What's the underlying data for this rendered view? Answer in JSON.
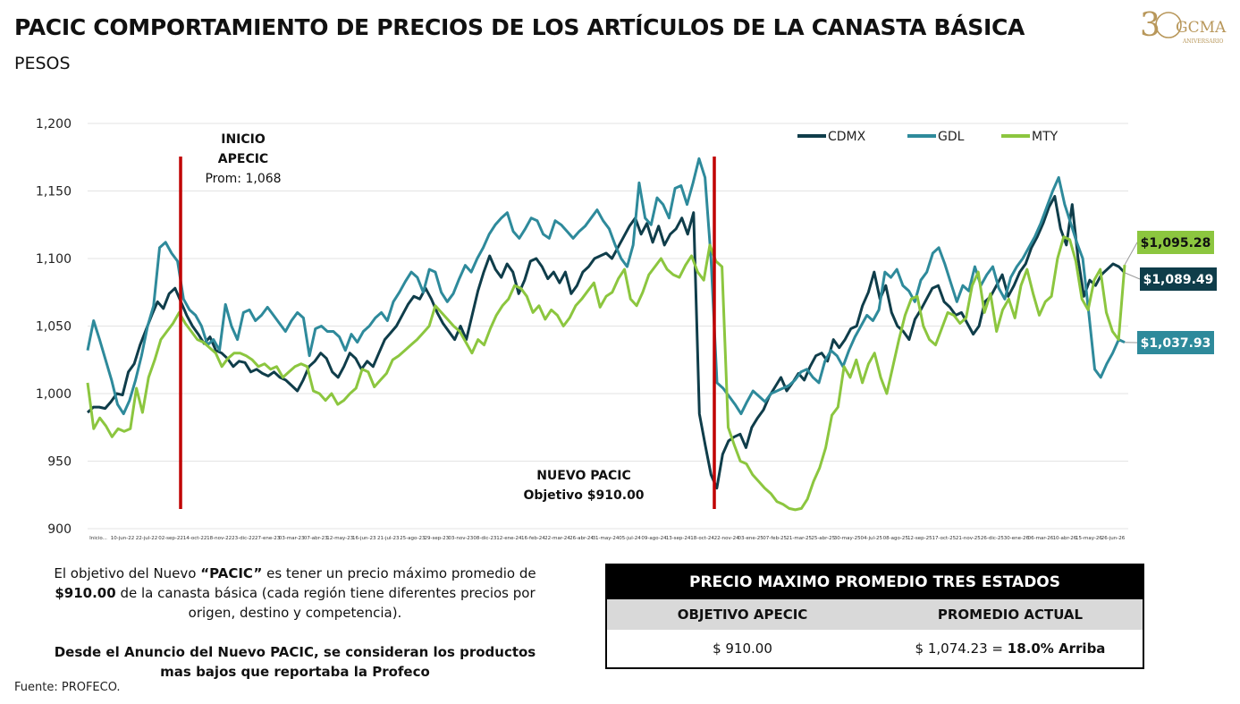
{
  "page": {
    "title": "PACIC COMPORTAMIENTO DE PRECIOS DE LOS ARTÍCULOS DE LA CANASTA BÁSICA",
    "subtitle": "PESOS",
    "logo_text": "30 GCMA ANIVERSARIO",
    "logo_color": "#b8975a",
    "source": "Fuente: PROFECO."
  },
  "description": {
    "p1_a": "El objetivo del Nuevo ",
    "p1_b": "“PACIC”",
    "p1_c": " es tener un precio máximo promedio de ",
    "p1_d": "$910.00",
    "p1_e": " de la canasta básica (cada región tiene diferentes precios por origen, destino y competencia).",
    "p2": "Desde el Anuncio del Nuevo PACIC, se consideran los productos mas bajos que reportaba la Profeco"
  },
  "table": {
    "header": "PRECIO MAXIMO PROMEDIO TRES ESTADOS",
    "col1": "OBJETIVO APECIC",
    "col2": "PROMEDIO ACTUAL",
    "val1": "$ 910.00",
    "val2_a": "$ 1,074.23  =  ",
    "val2_b": "18.0% Arriba"
  },
  "chart_data": {
    "type": "line",
    "ylim": [
      900,
      1200
    ],
    "yticks": [
      "900",
      "950",
      "1,000",
      "1,050",
      "1,100",
      "1,150",
      "1,200"
    ],
    "xticks": [
      "Inicio...",
      "10-jun-22",
      "22-jul-22",
      "02-sep-22",
      "14-oct-22",
      "18-nov-22",
      "23-dic-22",
      "27-ene-23",
      "03-mar-23",
      "07-abr-23",
      "12-may-23",
      "16-jun-23",
      "21-jul-23",
      "25-ago-23",
      "29-sep-23",
      "03-nov-23",
      "08-dic-23",
      "12-ene-24",
      "16-feb-24",
      "22-mar-24",
      "26-abr-24",
      "31-may-24",
      "05-jul-24",
      "09-ago-24",
      "13-sep-24",
      "18-oct-24",
      "22-nov-24",
      "03-ene-25",
      "07-feb-25",
      "21-mar-25",
      "25-abr-25",
      "30-may-25",
      "04-jul-25",
      "08-ago-25",
      "12-sep-25",
      "17-oct-25",
      "21-nov-25",
      "26-dic-25",
      "30-ene-26",
      "06-mar-26",
      "10-abr-26",
      "15-may-26",
      "26-jun-26"
    ],
    "series": [
      {
        "name": "CDMX",
        "color": "#0f3d4a",
        "last_label": "$1,089.49",
        "values": [
          986,
          990,
          990,
          989,
          994,
          1000,
          999,
          1016,
          1022,
          1036,
          1047,
          1058,
          1068,
          1063,
          1074,
          1078,
          1068,
          1058,
          1050,
          1044,
          1037,
          1042,
          1032,
          1030,
          1026,
          1020,
          1024,
          1023,
          1016,
          1018,
          1015,
          1013,
          1016,
          1012,
          1010,
          1006,
          1002,
          1010,
          1020,
          1024,
          1030,
          1026,
          1016,
          1012,
          1020,
          1030,
          1026,
          1018,
          1024,
          1020,
          1030,
          1040,
          1045,
          1050,
          1058,
          1066,
          1072,
          1070,
          1078,
          1070,
          1060,
          1052,
          1046,
          1040,
          1050,
          1040,
          1058,
          1076,
          1090,
          1102,
          1092,
          1086,
          1096,
          1090,
          1074,
          1084,
          1098,
          1100,
          1094,
          1085,
          1090,
          1082,
          1090,
          1074,
          1080,
          1090,
          1094,
          1100,
          1102,
          1104,
          1100,
          1108,
          1116,
          1124,
          1130,
          1118,
          1126,
          1112,
          1124,
          1110,
          1118,
          1122,
          1130,
          1118,
          1134,
          985,
          962,
          940,
          930,
          955,
          965,
          968,
          970,
          960,
          975,
          982,
          988,
          998,
          1005,
          1012,
          1002,
          1008,
          1015,
          1010,
          1020,
          1028,
          1030,
          1024,
          1040,
          1034,
          1040,
          1048,
          1050,
          1065,
          1075,
          1090,
          1070,
          1080,
          1060,
          1050,
          1046,
          1040,
          1055,
          1062,
          1070,
          1078,
          1080,
          1068,
          1064,
          1058,
          1060,
          1052,
          1044,
          1050,
          1068,
          1072,
          1080,
          1088,
          1072,
          1080,
          1090,
          1096,
          1108,
          1116,
          1126,
          1138,
          1146,
          1122,
          1110,
          1140,
          1100,
          1072,
          1084,
          1080,
          1088,
          1092,
          1096,
          1094,
          1089.49
        ]
      },
      {
        "name": "GDL",
        "color": "#2e8a9b",
        "last_label": "$1,037.93",
        "values": [
          1032,
          1054,
          1040,
          1025,
          1010,
          992,
          985,
          995,
          1010,
          1028,
          1050,
          1065,
          1108,
          1112,
          1104,
          1098,
          1070,
          1062,
          1058,
          1050,
          1036,
          1040,
          1032,
          1066,
          1050,
          1040,
          1060,
          1062,
          1054,
          1058,
          1064,
          1058,
          1052,
          1046,
          1054,
          1060,
          1056,
          1028,
          1048,
          1050,
          1046,
          1046,
          1042,
          1032,
          1044,
          1038,
          1046,
          1050,
          1056,
          1060,
          1054,
          1068,
          1075,
          1083,
          1090,
          1086,
          1075,
          1092,
          1090,
          1075,
          1068,
          1074,
          1085,
          1095,
          1090,
          1100,
          1108,
          1118,
          1125,
          1130,
          1134,
          1120,
          1115,
          1122,
          1130,
          1128,
          1118,
          1115,
          1128,
          1125,
          1120,
          1115,
          1120,
          1124,
          1130,
          1136,
          1128,
          1122,
          1110,
          1100,
          1094,
          1110,
          1156,
          1130,
          1125,
          1145,
          1140,
          1130,
          1152,
          1154,
          1140,
          1156,
          1174,
          1160,
          1100,
          1008,
          1004,
          998,
          992,
          985,
          994,
          1002,
          998,
          994,
          1000,
          1002,
          1004,
          1006,
          1010,
          1016,
          1018,
          1012,
          1008,
          1024,
          1032,
          1028,
          1020,
          1032,
          1042,
          1050,
          1058,
          1054,
          1062,
          1090,
          1086,
          1092,
          1080,
          1076,
          1068,
          1084,
          1090,
          1104,
          1108,
          1096,
          1082,
          1068,
          1080,
          1076,
          1094,
          1080,
          1088,
          1094,
          1078,
          1070,
          1086,
          1094,
          1100,
          1108,
          1116,
          1126,
          1138,
          1150,
          1160,
          1140,
          1126,
          1112,
          1100,
          1060,
          1018,
          1012,
          1022,
          1030,
          1040,
          1037.93
        ]
      },
      {
        "name": "MTY",
        "color": "#8cc63f",
        "last_label": "$1,095.28",
        "values": [
          1008,
          974,
          982,
          976,
          968,
          974,
          972,
          974,
          1004,
          986,
          1012,
          1025,
          1040,
          1046,
          1052,
          1060,
          1052,
          1046,
          1040,
          1038,
          1034,
          1030,
          1020,
          1026,
          1030,
          1030,
          1028,
          1025,
          1020,
          1022,
          1018,
          1020,
          1012,
          1016,
          1020,
          1022,
          1020,
          1002,
          1000,
          995,
          1000,
          992,
          995,
          1000,
          1004,
          1018,
          1016,
          1005,
          1010,
          1015,
          1025,
          1028,
          1032,
          1036,
          1040,
          1045,
          1050,
          1065,
          1060,
          1055,
          1050,
          1046,
          1038,
          1030,
          1040,
          1036,
          1048,
          1058,
          1065,
          1070,
          1080,
          1078,
          1072,
          1060,
          1065,
          1055,
          1062,
          1058,
          1050,
          1056,
          1065,
          1070,
          1076,
          1082,
          1064,
          1072,
          1075,
          1085,
          1092,
          1070,
          1065,
          1075,
          1088,
          1094,
          1100,
          1092,
          1088,
          1086,
          1095,
          1102,
          1090,
          1084,
          1110,
          1098,
          1094,
          975,
          962,
          950,
          948,
          940,
          935,
          930,
          926,
          920,
          918,
          915,
          914,
          915,
          922,
          935,
          945,
          960,
          984,
          990,
          1020,
          1012,
          1025,
          1008,
          1022,
          1030,
          1012,
          1000,
          1020,
          1040,
          1058,
          1070,
          1072,
          1050,
          1040,
          1036,
          1048,
          1060,
          1058,
          1052,
          1056,
          1080,
          1090,
          1060,
          1074,
          1046,
          1062,
          1070,
          1056,
          1080,
          1092,
          1074,
          1058,
          1068,
          1072,
          1100,
          1116,
          1114,
          1098,
          1070,
          1062,
          1084,
          1092,
          1060,
          1046,
          1040,
          1095.28
        ]
      }
    ],
    "annotations": [
      {
        "label1": "INICIO",
        "label2": "APECIC",
        "label3": "Prom: 1,068"
      },
      {
        "label1": "NUEVO PACIC",
        "label2": "Objetivo $910.00"
      }
    ],
    "vline_color": "#c00000",
    "legend_position": "top-right"
  }
}
